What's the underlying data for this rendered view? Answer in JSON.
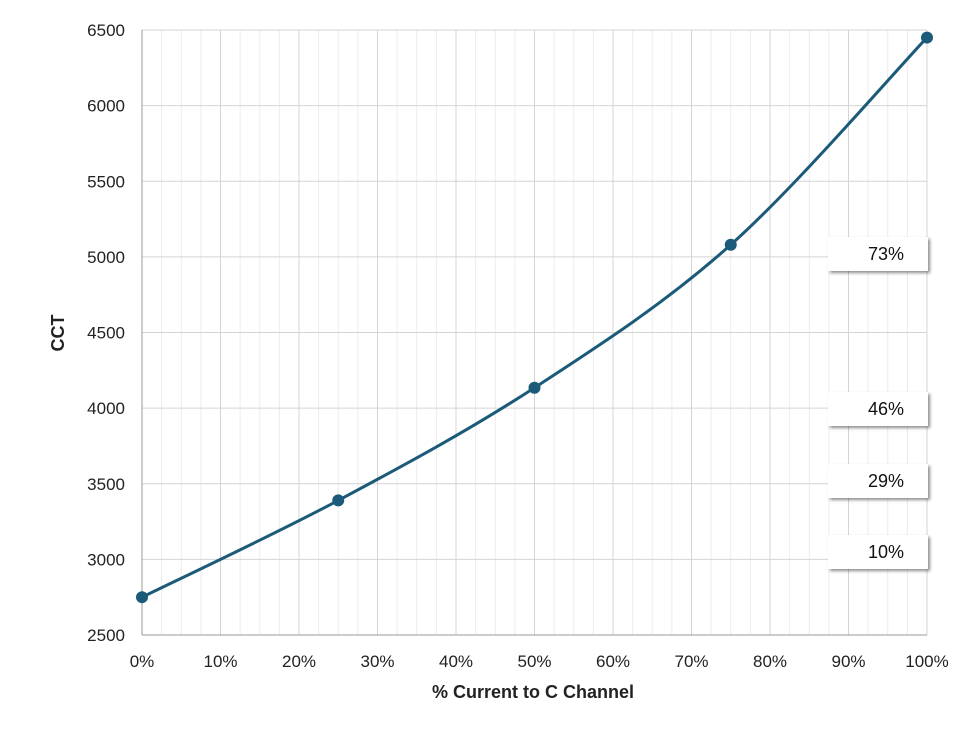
{
  "chart_data": {
    "type": "line",
    "title": "",
    "xlabel": "% Current to C Channel",
    "ylabel": "CCT",
    "xlim": [
      0,
      100
    ],
    "ylim": [
      2500,
      6500
    ],
    "x_ticks": [
      "0%",
      "10%",
      "20%",
      "30%",
      "40%",
      "50%",
      "60%",
      "70%",
      "80%",
      "90%",
      "100%"
    ],
    "y_ticks": [
      "2500",
      "3000",
      "3500",
      "4000",
      "4500",
      "5000",
      "5500",
      "6000",
      "6500"
    ],
    "grid": true,
    "series": [
      {
        "x": [
          0,
          25,
          50,
          75,
          100
        ],
        "y": [
          2750,
          3390,
          4135,
          5080,
          6450
        ],
        "color": "#1b5a78",
        "markers": true,
        "smooth": true
      }
    ],
    "callouts": [
      {
        "label": "73%",
        "y": 5000
      },
      {
        "label": "46%",
        "y": 3990
      },
      {
        "label": "29%",
        "y": 3480
      },
      {
        "label": "10%",
        "y": 2960
      }
    ]
  }
}
